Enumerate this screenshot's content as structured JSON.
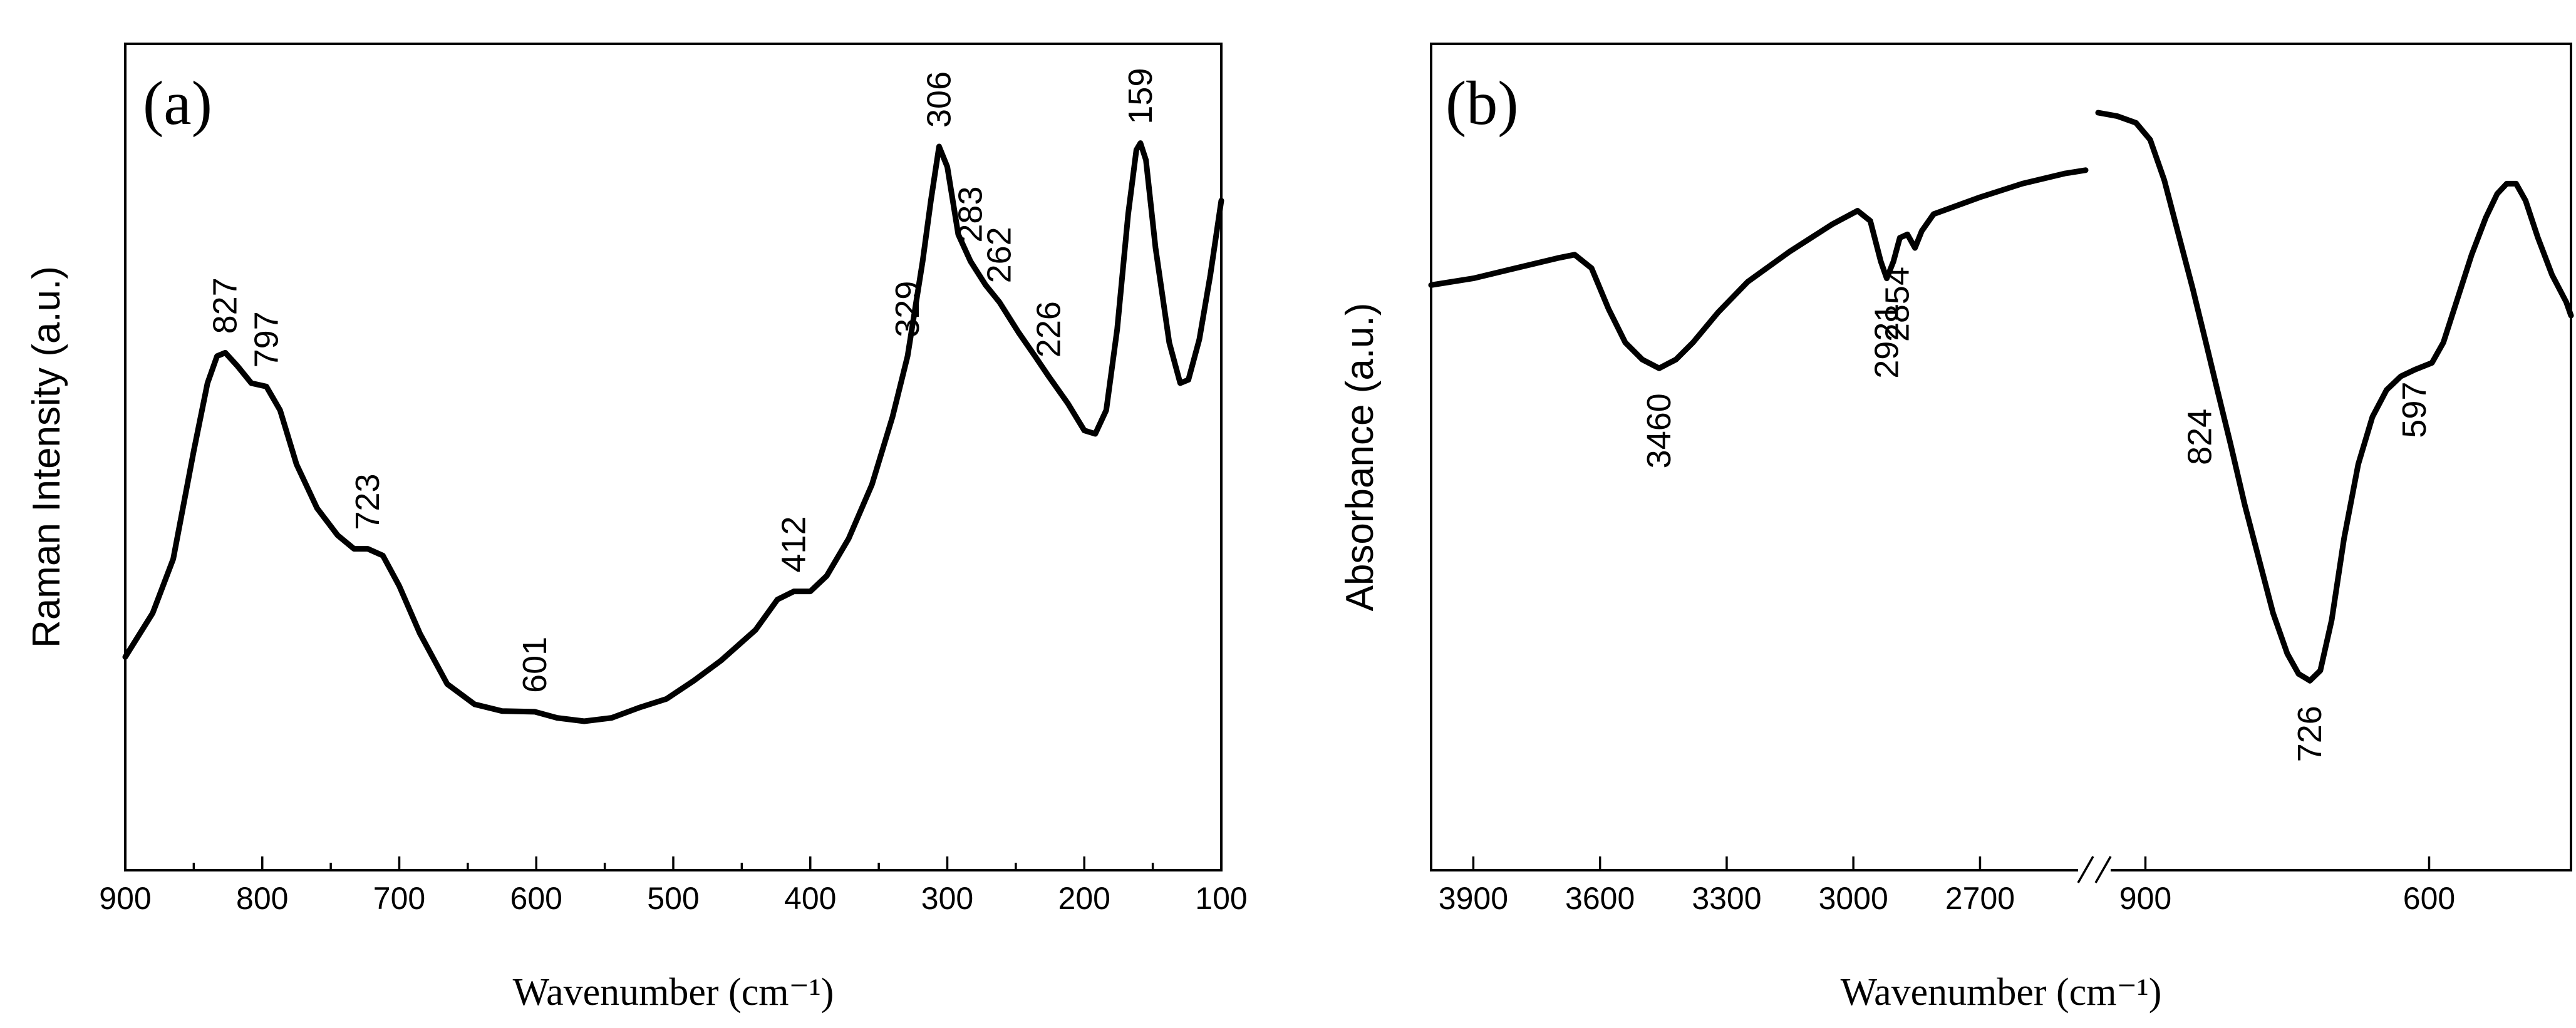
{
  "chart_data": [
    {
      "panel": "(a)",
      "type": "line",
      "xlabel": "Wavenumber (cm⁻¹)",
      "ylabel": "Raman Intensity (a.u.)",
      "xlim": [
        900,
        100
      ],
      "ylim": [
        0,
        1
      ],
      "x_reversed": true,
      "x_ticks": [
        900,
        800,
        700,
        600,
        500,
        400,
        300,
        200,
        100
      ],
      "x_tick_labels": [
        "900",
        "800",
        "700",
        "600",
        "500",
        "400",
        "300",
        "200",
        "100"
      ],
      "series": [
        {
          "name": "Raman spectrum",
          "points": [
            [
              900,
              0.195
            ],
            [
              880,
              0.26
            ],
            [
              865,
              0.34
            ],
            [
              850,
              0.5
            ],
            [
              840,
              0.6
            ],
            [
              833,
              0.64
            ],
            [
              827,
              0.645
            ],
            [
              818,
              0.625
            ],
            [
              808,
              0.6
            ],
            [
              797,
              0.595
            ],
            [
              787,
              0.56
            ],
            [
              775,
              0.48
            ],
            [
              760,
              0.415
            ],
            [
              745,
              0.375
            ],
            [
              733,
              0.355
            ],
            [
              723,
              0.355
            ],
            [
              712,
              0.345
            ],
            [
              700,
              0.3
            ],
            [
              685,
              0.23
            ],
            [
              665,
              0.155
            ],
            [
              645,
              0.125
            ],
            [
              625,
              0.115
            ],
            [
              601,
              0.114
            ],
            [
              585,
              0.105
            ],
            [
              565,
              0.1
            ],
            [
              545,
              0.105
            ],
            [
              525,
              0.12
            ],
            [
              505,
              0.133
            ],
            [
              485,
              0.16
            ],
            [
              465,
              0.19
            ],
            [
              440,
              0.235
            ],
            [
              424,
              0.28
            ],
            [
              412,
              0.292
            ],
            [
              400,
              0.292
            ],
            [
              388,
              0.315
            ],
            [
              372,
              0.37
            ],
            [
              355,
              0.45
            ],
            [
              340,
              0.55
            ],
            [
              329,
              0.64
            ],
            [
              318,
              0.78
            ],
            [
              312,
              0.87
            ],
            [
              306,
              0.95
            ],
            [
              300,
              0.92
            ],
            [
              292,
              0.82
            ],
            [
              283,
              0.78
            ],
            [
              272,
              0.745
            ],
            [
              262,
              0.72
            ],
            [
              248,
              0.675
            ],
            [
              236,
              0.64
            ],
            [
              226,
              0.61
            ],
            [
              212,
              0.57
            ],
            [
              200,
              0.53
            ],
            [
              192,
              0.525
            ],
            [
              184,
              0.56
            ],
            [
              176,
              0.68
            ],
            [
              168,
              0.85
            ],
            [
              162,
              0.945
            ],
            [
              159,
              0.955
            ],
            [
              155,
              0.93
            ],
            [
              148,
              0.8
            ],
            [
              138,
              0.66
            ],
            [
              130,
              0.6
            ],
            [
              124,
              0.605
            ],
            [
              116,
              0.665
            ],
            [
              108,
              0.76
            ],
            [
              100,
              0.87
            ]
          ]
        }
      ],
      "annotations": [
        {
          "text": "827",
          "x": 827,
          "y": 0.645
        },
        {
          "text": "797",
          "x": 797,
          "y": 0.595
        },
        {
          "text": "723",
          "x": 723,
          "y": 0.355
        },
        {
          "text": "601",
          "x": 601,
          "y": 0.114
        },
        {
          "text": "412",
          "x": 412,
          "y": 0.292
        },
        {
          "text": "329",
          "x": 329,
          "y": 0.64
        },
        {
          "text": "306",
          "x": 306,
          "y": 0.95
        },
        {
          "text": "283",
          "x": 283,
          "y": 0.78
        },
        {
          "text": "262",
          "x": 262,
          "y": 0.72
        },
        {
          "text": "226",
          "x": 226,
          "y": 0.61
        },
        {
          "text": "159",
          "x": 159,
          "y": 0.955
        }
      ]
    },
    {
      "panel": "(b)",
      "type": "line",
      "xlabel": "Wavenumber (cm⁻¹)",
      "ylabel": "Absorbance (a.u.)",
      "ylim": [
        0,
        1
      ],
      "x_reversed": true,
      "broken_axis": true,
      "segments": [
        {
          "xlim": [
            4000,
            2450
          ],
          "x_ticks": [
            3900,
            3600,
            3300,
            3000,
            2700
          ],
          "x_tick_labels": [
            "3900",
            "3600",
            "3300",
            "3000",
            "2700"
          ],
          "points": [
            [
              4000,
              0.745
            ],
            [
              3900,
              0.755
            ],
            [
              3800,
              0.77
            ],
            [
              3700,
              0.785
            ],
            [
              3660,
              0.79
            ],
            [
              3620,
              0.77
            ],
            [
              3580,
              0.71
            ],
            [
              3540,
              0.66
            ],
            [
              3500,
              0.635
            ],
            [
              3460,
              0.622
            ],
            [
              3420,
              0.635
            ],
            [
              3380,
              0.66
            ],
            [
              3320,
              0.705
            ],
            [
              3250,
              0.75
            ],
            [
              3150,
              0.795
            ],
            [
              3050,
              0.835
            ],
            [
              2990,
              0.855
            ],
            [
              2960,
              0.84
            ],
            [
              2935,
              0.78
            ],
            [
              2921,
              0.755
            ],
            [
              2905,
              0.78
            ],
            [
              2890,
              0.815
            ],
            [
              2872,
              0.82
            ],
            [
              2854,
              0.8
            ],
            [
              2838,
              0.825
            ],
            [
              2810,
              0.85
            ],
            [
              2700,
              0.875
            ],
            [
              2600,
              0.895
            ],
            [
              2500,
              0.91
            ],
            [
              2450,
              0.915
            ]
          ]
        },
        {
          "xlim": [
            950,
            450
          ],
          "x_ticks": [
            900,
            600
          ],
          "x_tick_labels": [
            "900",
            "600"
          ],
          "points": [
            [
              950,
              1.0
            ],
            [
              930,
              0.995
            ],
            [
              910,
              0.985
            ],
            [
              895,
              0.96
            ],
            [
              880,
              0.9
            ],
            [
              865,
              0.82
            ],
            [
              850,
              0.74
            ],
            [
              836,
              0.66
            ],
            [
              824,
              0.59
            ],
            [
              810,
              0.51
            ],
            [
              795,
              0.42
            ],
            [
              780,
              0.34
            ],
            [
              765,
              0.26
            ],
            [
              750,
              0.2
            ],
            [
              738,
              0.17
            ],
            [
              726,
              0.16
            ],
            [
              715,
              0.175
            ],
            [
              703,
              0.25
            ],
            [
              690,
              0.37
            ],
            [
              675,
              0.48
            ],
            [
              660,
              0.55
            ],
            [
              645,
              0.59
            ],
            [
              630,
              0.61
            ],
            [
              615,
              0.62
            ],
            [
              597,
              0.63
            ],
            [
              585,
              0.66
            ],
            [
              570,
              0.725
            ],
            [
              555,
              0.79
            ],
            [
              540,
              0.845
            ],
            [
              528,
              0.88
            ],
            [
              518,
              0.895
            ],
            [
              508,
              0.895
            ],
            [
              498,
              0.87
            ],
            [
              485,
              0.815
            ],
            [
              470,
              0.76
            ],
            [
              455,
              0.72
            ],
            [
              450,
              0.7
            ]
          ]
        }
      ],
      "annotations": [
        {
          "text": "3460",
          "x": 3460,
          "y": 0.622,
          "segment": 0
        },
        {
          "text": "2921",
          "x": 2921,
          "y": 0.755,
          "segment": 0
        },
        {
          "text": "2854",
          "x": 2854,
          "y": 0.8,
          "segment": 0
        },
        {
          "text": "824",
          "x": 824,
          "y": 0.59,
          "segment": 1
        },
        {
          "text": "726",
          "x": 726,
          "y": 0.16,
          "segment": 1
        },
        {
          "text": "597",
          "x": 597,
          "y": 0.63,
          "segment": 1
        }
      ]
    }
  ]
}
